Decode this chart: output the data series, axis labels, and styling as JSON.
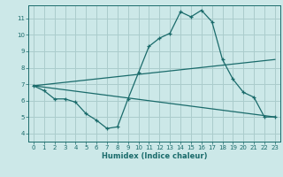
{
  "title": "",
  "xlabel": "Humidex (Indice chaleur)",
  "background_color": "#cce8e8",
  "grid_color": "#aacccc",
  "line_color": "#1a6b6b",
  "xlim": [
    -0.5,
    23.5
  ],
  "ylim": [
    3.5,
    11.8
  ],
  "xticks": [
    0,
    1,
    2,
    3,
    4,
    5,
    6,
    7,
    8,
    9,
    10,
    11,
    12,
    13,
    14,
    15,
    16,
    17,
    18,
    19,
    20,
    21,
    22,
    23
  ],
  "yticks": [
    4,
    5,
    6,
    7,
    8,
    9,
    10,
    11
  ],
  "line1_x": [
    0,
    1,
    2,
    3,
    4,
    5,
    6,
    7,
    8,
    9,
    10,
    11,
    12,
    13,
    14,
    15,
    16,
    17,
    18,
    19,
    20,
    21,
    22,
    23
  ],
  "line1_y": [
    6.9,
    6.6,
    6.1,
    6.1,
    5.9,
    5.2,
    4.8,
    4.3,
    4.4,
    6.1,
    7.7,
    9.3,
    9.8,
    10.1,
    11.4,
    11.1,
    11.5,
    10.8,
    8.5,
    7.3,
    6.5,
    6.2,
    5.0,
    5.0
  ],
  "line2_x": [
    0,
    23
  ],
  "line2_y": [
    6.9,
    8.5
  ],
  "line3_x": [
    0,
    23
  ],
  "line3_y": [
    6.9,
    5.0
  ]
}
